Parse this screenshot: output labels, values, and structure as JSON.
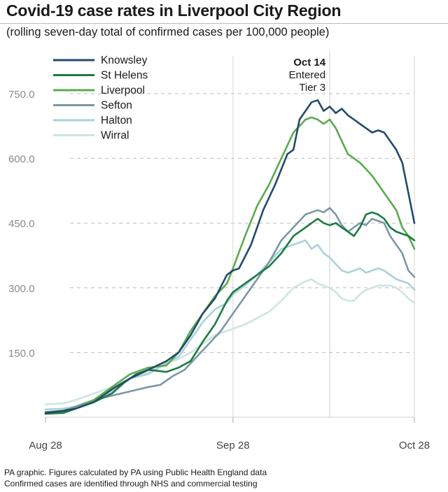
{
  "header": {
    "title": "Covid-19 case rates in Liverpool City Region",
    "subtitle": "(rolling seven-day total of confirmed cases per 100,000 people)"
  },
  "footer": {
    "line1": "PA graphic. Figures calculated by PA using Public Health England data",
    "line2": "Confirmed cases are identified through NHS and commercial testing"
  },
  "chart_data": {
    "type": "line",
    "title": "Covid-19 case rates in Liverpool City Region",
    "subtitle": "(rolling seven-day total of confirmed cases per 100,000 people)",
    "xlabel": "",
    "ylabel": "",
    "x_range_days": [
      0,
      61
    ],
    "ylim": [
      0,
      800
    ],
    "y_ticks": [
      150,
      300,
      450,
      600,
      750
    ],
    "y_tick_labels": [
      "150.0",
      "300.0",
      "450.0",
      "600.0",
      "750.0"
    ],
    "x_ticks": [
      0,
      31,
      61
    ],
    "x_tick_labels": [
      "Aug 28",
      "Sep 28",
      "Oct 28"
    ],
    "grid": "horizontal dashed",
    "legend_position": "top-left",
    "annotation": {
      "day": 47,
      "label_bold": "Oct 14",
      "label_line2": "Entered",
      "label_line3": "Tier 3"
    },
    "series": [
      {
        "name": "Knowsley",
        "color": "#244a6b",
        "points": [
          [
            0,
            10
          ],
          [
            3,
            15
          ],
          [
            5,
            20
          ],
          [
            8,
            35
          ],
          [
            11,
            65
          ],
          [
            14,
            90
          ],
          [
            17,
            110
          ],
          [
            20,
            130
          ],
          [
            22,
            150
          ],
          [
            24,
            190
          ],
          [
            26,
            240
          ],
          [
            28,
            275
          ],
          [
            30,
            330
          ],
          [
            31,
            340
          ],
          [
            32,
            345
          ],
          [
            34,
            400
          ],
          [
            36,
            480
          ],
          [
            38,
            540
          ],
          [
            40,
            610
          ],
          [
            41,
            620
          ],
          [
            42,
            690
          ],
          [
            44,
            730
          ],
          [
            45,
            735
          ],
          [
            46,
            710
          ],
          [
            47,
            720
          ],
          [
            48,
            705
          ],
          [
            49,
            715
          ],
          [
            50,
            700
          ],
          [
            51,
            690
          ],
          [
            52,
            680
          ],
          [
            53,
            670
          ],
          [
            54,
            660
          ],
          [
            55,
            665
          ],
          [
            56,
            660
          ],
          [
            57,
            640
          ],
          [
            58,
            620
          ],
          [
            59,
            590
          ],
          [
            60,
            520
          ],
          [
            61,
            450
          ]
        ]
      },
      {
        "name": "St Helens",
        "color": "#1d7a40",
        "points": [
          [
            0,
            8
          ],
          [
            3,
            10
          ],
          [
            5,
            20
          ],
          [
            8,
            35
          ],
          [
            11,
            55
          ],
          [
            13,
            80
          ],
          [
            15,
            100
          ],
          [
            17,
            110
          ],
          [
            20,
            105
          ],
          [
            22,
            115
          ],
          [
            24,
            130
          ],
          [
            26,
            175
          ],
          [
            28,
            215
          ],
          [
            30,
            270
          ],
          [
            31,
            290
          ],
          [
            33,
            310
          ],
          [
            35,
            330
          ],
          [
            37,
            350
          ],
          [
            39,
            380
          ],
          [
            41,
            420
          ],
          [
            43,
            440
          ],
          [
            44,
            450
          ],
          [
            45,
            460
          ],
          [
            46,
            450
          ],
          [
            47,
            445
          ],
          [
            48,
            450
          ],
          [
            49,
            440
          ],
          [
            50,
            430
          ],
          [
            51,
            420
          ],
          [
            52,
            440
          ],
          [
            53,
            470
          ],
          [
            54,
            475
          ],
          [
            55,
            470
          ],
          [
            56,
            460
          ],
          [
            57,
            440
          ],
          [
            58,
            430
          ],
          [
            59,
            425
          ],
          [
            60,
            420
          ],
          [
            61,
            410
          ]
        ]
      },
      {
        "name": "Liverpool",
        "color": "#5aab4e",
        "points": [
          [
            0,
            8
          ],
          [
            3,
            12
          ],
          [
            5,
            20
          ],
          [
            8,
            40
          ],
          [
            11,
            70
          ],
          [
            14,
            100
          ],
          [
            17,
            115
          ],
          [
            20,
            120
          ],
          [
            22,
            150
          ],
          [
            24,
            200
          ],
          [
            26,
            240
          ],
          [
            28,
            280
          ],
          [
            30,
            310
          ],
          [
            31,
            345
          ],
          [
            33,
            420
          ],
          [
            35,
            490
          ],
          [
            37,
            540
          ],
          [
            39,
            600
          ],
          [
            41,
            660
          ],
          [
            43,
            690
          ],
          [
            44,
            695
          ],
          [
            45,
            690
          ],
          [
            46,
            680
          ],
          [
            47,
            690
          ],
          [
            48,
            670
          ],
          [
            49,
            640
          ],
          [
            50,
            610
          ],
          [
            51,
            600
          ],
          [
            52,
            590
          ],
          [
            53,
            575
          ],
          [
            54,
            560
          ],
          [
            55,
            540
          ],
          [
            56,
            520
          ],
          [
            57,
            500
          ],
          [
            58,
            480
          ],
          [
            59,
            440
          ],
          [
            60,
            420
          ],
          [
            61,
            390
          ]
        ]
      },
      {
        "name": "Sefton",
        "color": "#7b97a5",
        "points": [
          [
            0,
            12
          ],
          [
            3,
            15
          ],
          [
            5,
            25
          ],
          [
            8,
            40
          ],
          [
            11,
            50
          ],
          [
            14,
            60
          ],
          [
            17,
            70
          ],
          [
            19,
            75
          ],
          [
            21,
            95
          ],
          [
            23,
            110
          ],
          [
            25,
            140
          ],
          [
            27,
            170
          ],
          [
            29,
            200
          ],
          [
            31,
            240
          ],
          [
            33,
            280
          ],
          [
            35,
            320
          ],
          [
            37,
            360
          ],
          [
            39,
            410
          ],
          [
            41,
            440
          ],
          [
            43,
            470
          ],
          [
            45,
            480
          ],
          [
            46,
            475
          ],
          [
            47,
            485
          ],
          [
            48,
            470
          ],
          [
            49,
            445
          ],
          [
            50,
            430
          ],
          [
            51,
            440
          ],
          [
            52,
            450
          ],
          [
            53,
            445
          ],
          [
            54,
            460
          ],
          [
            55,
            455
          ],
          [
            56,
            450
          ],
          [
            57,
            420
          ],
          [
            58,
            400
          ],
          [
            59,
            380
          ],
          [
            60,
            340
          ],
          [
            61,
            325
          ]
        ]
      },
      {
        "name": "Halton",
        "color": "#a9d3d6",
        "points": [
          [
            0,
            18
          ],
          [
            3,
            20
          ],
          [
            5,
            25
          ],
          [
            8,
            40
          ],
          [
            11,
            60
          ],
          [
            14,
            90
          ],
          [
            17,
            100
          ],
          [
            20,
            125
          ],
          [
            22,
            140
          ],
          [
            24,
            180
          ],
          [
            26,
            220
          ],
          [
            28,
            250
          ],
          [
            30,
            265
          ],
          [
            31,
            285
          ],
          [
            33,
            305
          ],
          [
            35,
            330
          ],
          [
            37,
            360
          ],
          [
            39,
            390
          ],
          [
            41,
            400
          ],
          [
            43,
            410
          ],
          [
            44,
            390
          ],
          [
            45,
            400
          ],
          [
            46,
            380
          ],
          [
            47,
            370
          ],
          [
            48,
            355
          ],
          [
            49,
            340
          ],
          [
            50,
            335
          ],
          [
            51,
            340
          ],
          [
            52,
            345
          ],
          [
            53,
            335
          ],
          [
            54,
            340
          ],
          [
            55,
            345
          ],
          [
            56,
            340
          ],
          [
            57,
            330
          ],
          [
            58,
            320
          ],
          [
            59,
            315
          ],
          [
            60,
            310
          ],
          [
            61,
            295
          ]
        ]
      },
      {
        "name": "Wirral",
        "color": "#cde5e0",
        "points": [
          [
            0,
            30
          ],
          [
            3,
            32
          ],
          [
            5,
            40
          ],
          [
            8,
            55
          ],
          [
            11,
            70
          ],
          [
            14,
            90
          ],
          [
            17,
            105
          ],
          [
            20,
            125
          ],
          [
            22,
            135
          ],
          [
            24,
            150
          ],
          [
            26,
            170
          ],
          [
            28,
            190
          ],
          [
            30,
            200
          ],
          [
            31,
            205
          ],
          [
            33,
            215
          ],
          [
            35,
            230
          ],
          [
            37,
            245
          ],
          [
            39,
            270
          ],
          [
            41,
            300
          ],
          [
            43,
            315
          ],
          [
            44,
            320
          ],
          [
            45,
            310
          ],
          [
            46,
            305
          ],
          [
            47,
            300
          ],
          [
            48,
            290
          ],
          [
            49,
            275
          ],
          [
            50,
            270
          ],
          [
            51,
            270
          ],
          [
            52,
            285
          ],
          [
            53,
            295
          ],
          [
            54,
            300
          ],
          [
            55,
            305
          ],
          [
            56,
            305
          ],
          [
            57,
            305
          ],
          [
            58,
            300
          ],
          [
            59,
            290
          ],
          [
            60,
            275
          ],
          [
            61,
            265
          ]
        ]
      }
    ]
  }
}
